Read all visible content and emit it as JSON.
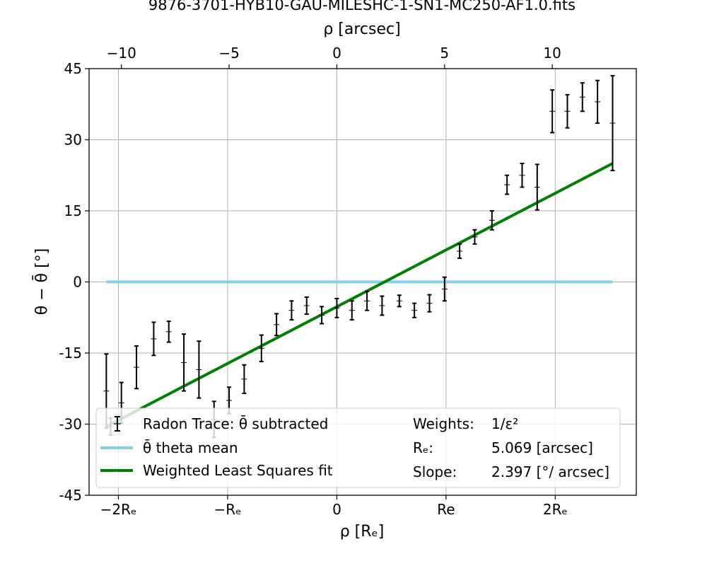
{
  "chart_data": {
    "type": "scatter",
    "title": "9876-3701-HYB10-GAU-MILESHC-1-SN1-MC250-AF1.0.fits",
    "xlabel": "ρ [Rₑ]",
    "ylabel": "θ − θ̄ [°]",
    "top_xlabel": "ρ [arcsec]",
    "ylim": [
      -45,
      45
    ],
    "xlim": [
      -11.5,
      13.9
    ],
    "grid": true,
    "y_ticks": [
      45,
      30,
      15,
      0,
      -15,
      -30,
      -45
    ],
    "y_tick_labels": [
      "45",
      "30",
      "15",
      "0",
      "-15",
      "-30",
      "-45"
    ],
    "top_x_ticks": [
      -10,
      -5,
      0,
      5,
      10
    ],
    "top_x_tick_labels": [
      "−10",
      "−5",
      "0",
      "5",
      "10"
    ],
    "bottom_x_ticks": [
      -10.138,
      -5.069,
      0,
      5.069,
      10.138
    ],
    "bottom_x_tick_labels": [
      "−2Rₑ",
      "−Rₑ",
      "0",
      "Re",
      "2Rₑ"
    ],
    "points": [
      {
        "x": -10.7,
        "y": -23.0,
        "err": 7.8
      },
      {
        "x": -10.5,
        "y": -30.5,
        "err": 1.8
      },
      {
        "x": -10.0,
        "y": -25.5,
        "err": 4.3
      },
      {
        "x": -9.3,
        "y": -18.0,
        "err": 4.5
      },
      {
        "x": -8.5,
        "y": -12.0,
        "err": 3.5
      },
      {
        "x": -7.8,
        "y": -10.5,
        "err": 2.2
      },
      {
        "x": -7.1,
        "y": -17.0,
        "err": 6.0
      },
      {
        "x": -6.4,
        "y": -18.5,
        "err": 6.0
      },
      {
        "x": -5.7,
        "y": -29.0,
        "err": 3.8
      },
      {
        "x": -5.0,
        "y": -25.0,
        "err": 2.8
      },
      {
        "x": -4.3,
        "y": -20.5,
        "err": 3.0
      },
      {
        "x": -3.5,
        "y": -14.0,
        "err": 2.8
      },
      {
        "x": -2.8,
        "y": -9.0,
        "err": 2.3
      },
      {
        "x": -2.1,
        "y": -6.0,
        "err": 2.0
      },
      {
        "x": -1.4,
        "y": -5.0,
        "err": 1.8
      },
      {
        "x": -0.7,
        "y": -7.0,
        "err": 1.8
      },
      {
        "x": 0.0,
        "y": -5.5,
        "err": 2.0
      },
      {
        "x": 0.7,
        "y": -6.0,
        "err": 2.0
      },
      {
        "x": 1.4,
        "y": -4.0,
        "err": 2.0
      },
      {
        "x": 2.1,
        "y": -5.0,
        "err": 2.0
      },
      {
        "x": 2.9,
        "y": -4.0,
        "err": 1.2
      },
      {
        "x": 3.6,
        "y": -6.0,
        "err": 1.5
      },
      {
        "x": 4.3,
        "y": -4.5,
        "err": 1.8
      },
      {
        "x": 5.0,
        "y": -1.5,
        "err": 2.5
      },
      {
        "x": 5.7,
        "y": 6.5,
        "err": 1.5
      },
      {
        "x": 6.4,
        "y": 9.5,
        "err": 1.5
      },
      {
        "x": 7.2,
        "y": 13.0,
        "err": 2.0
      },
      {
        "x": 7.9,
        "y": 20.5,
        "err": 2.0
      },
      {
        "x": 8.6,
        "y": 22.5,
        "err": 2.5
      },
      {
        "x": 9.3,
        "y": 20.0,
        "err": 4.8
      },
      {
        "x": 10.0,
        "y": 36.0,
        "err": 4.5
      },
      {
        "x": 10.7,
        "y": 36.0,
        "err": 3.5
      },
      {
        "x": 11.4,
        "y": 39.0,
        "err": 3.0
      },
      {
        "x": 12.1,
        "y": 38.0,
        "err": 4.5
      },
      {
        "x": 12.8,
        "y": 33.5,
        "err": 10.0
      }
    ],
    "series": [
      {
        "name": "Radon Trace: θ̄ subtracted",
        "color": "#000000",
        "kind": "errorbar"
      },
      {
        "name": "θ̄ theta mean",
        "color": "#87ceeb",
        "kind": "line",
        "x": [
          -10.7,
          12.8
        ],
        "y": [
          0,
          0
        ]
      },
      {
        "name": "Weighted Least Squares fit",
        "color": "#008000",
        "kind": "line",
        "x": [
          -10.7,
          12.8
        ],
        "y": [
          -30.5,
          25.0
        ]
      }
    ],
    "legend": {
      "placement": "lower-left",
      "entries": [
        {
          "label": "Radon Trace: θ̄ subtracted"
        },
        {
          "label": "θ̄ theta mean"
        },
        {
          "label": "Weighted Least Squares fit"
        }
      ],
      "info": [
        {
          "key": "Weights:",
          "value": "1/ε²"
        },
        {
          "key": "Rₑ:",
          "value": "5.069 [arcsec]"
        },
        {
          "key": "Slope:",
          "value": "2.397 [°/ arcsec]"
        }
      ]
    }
  }
}
